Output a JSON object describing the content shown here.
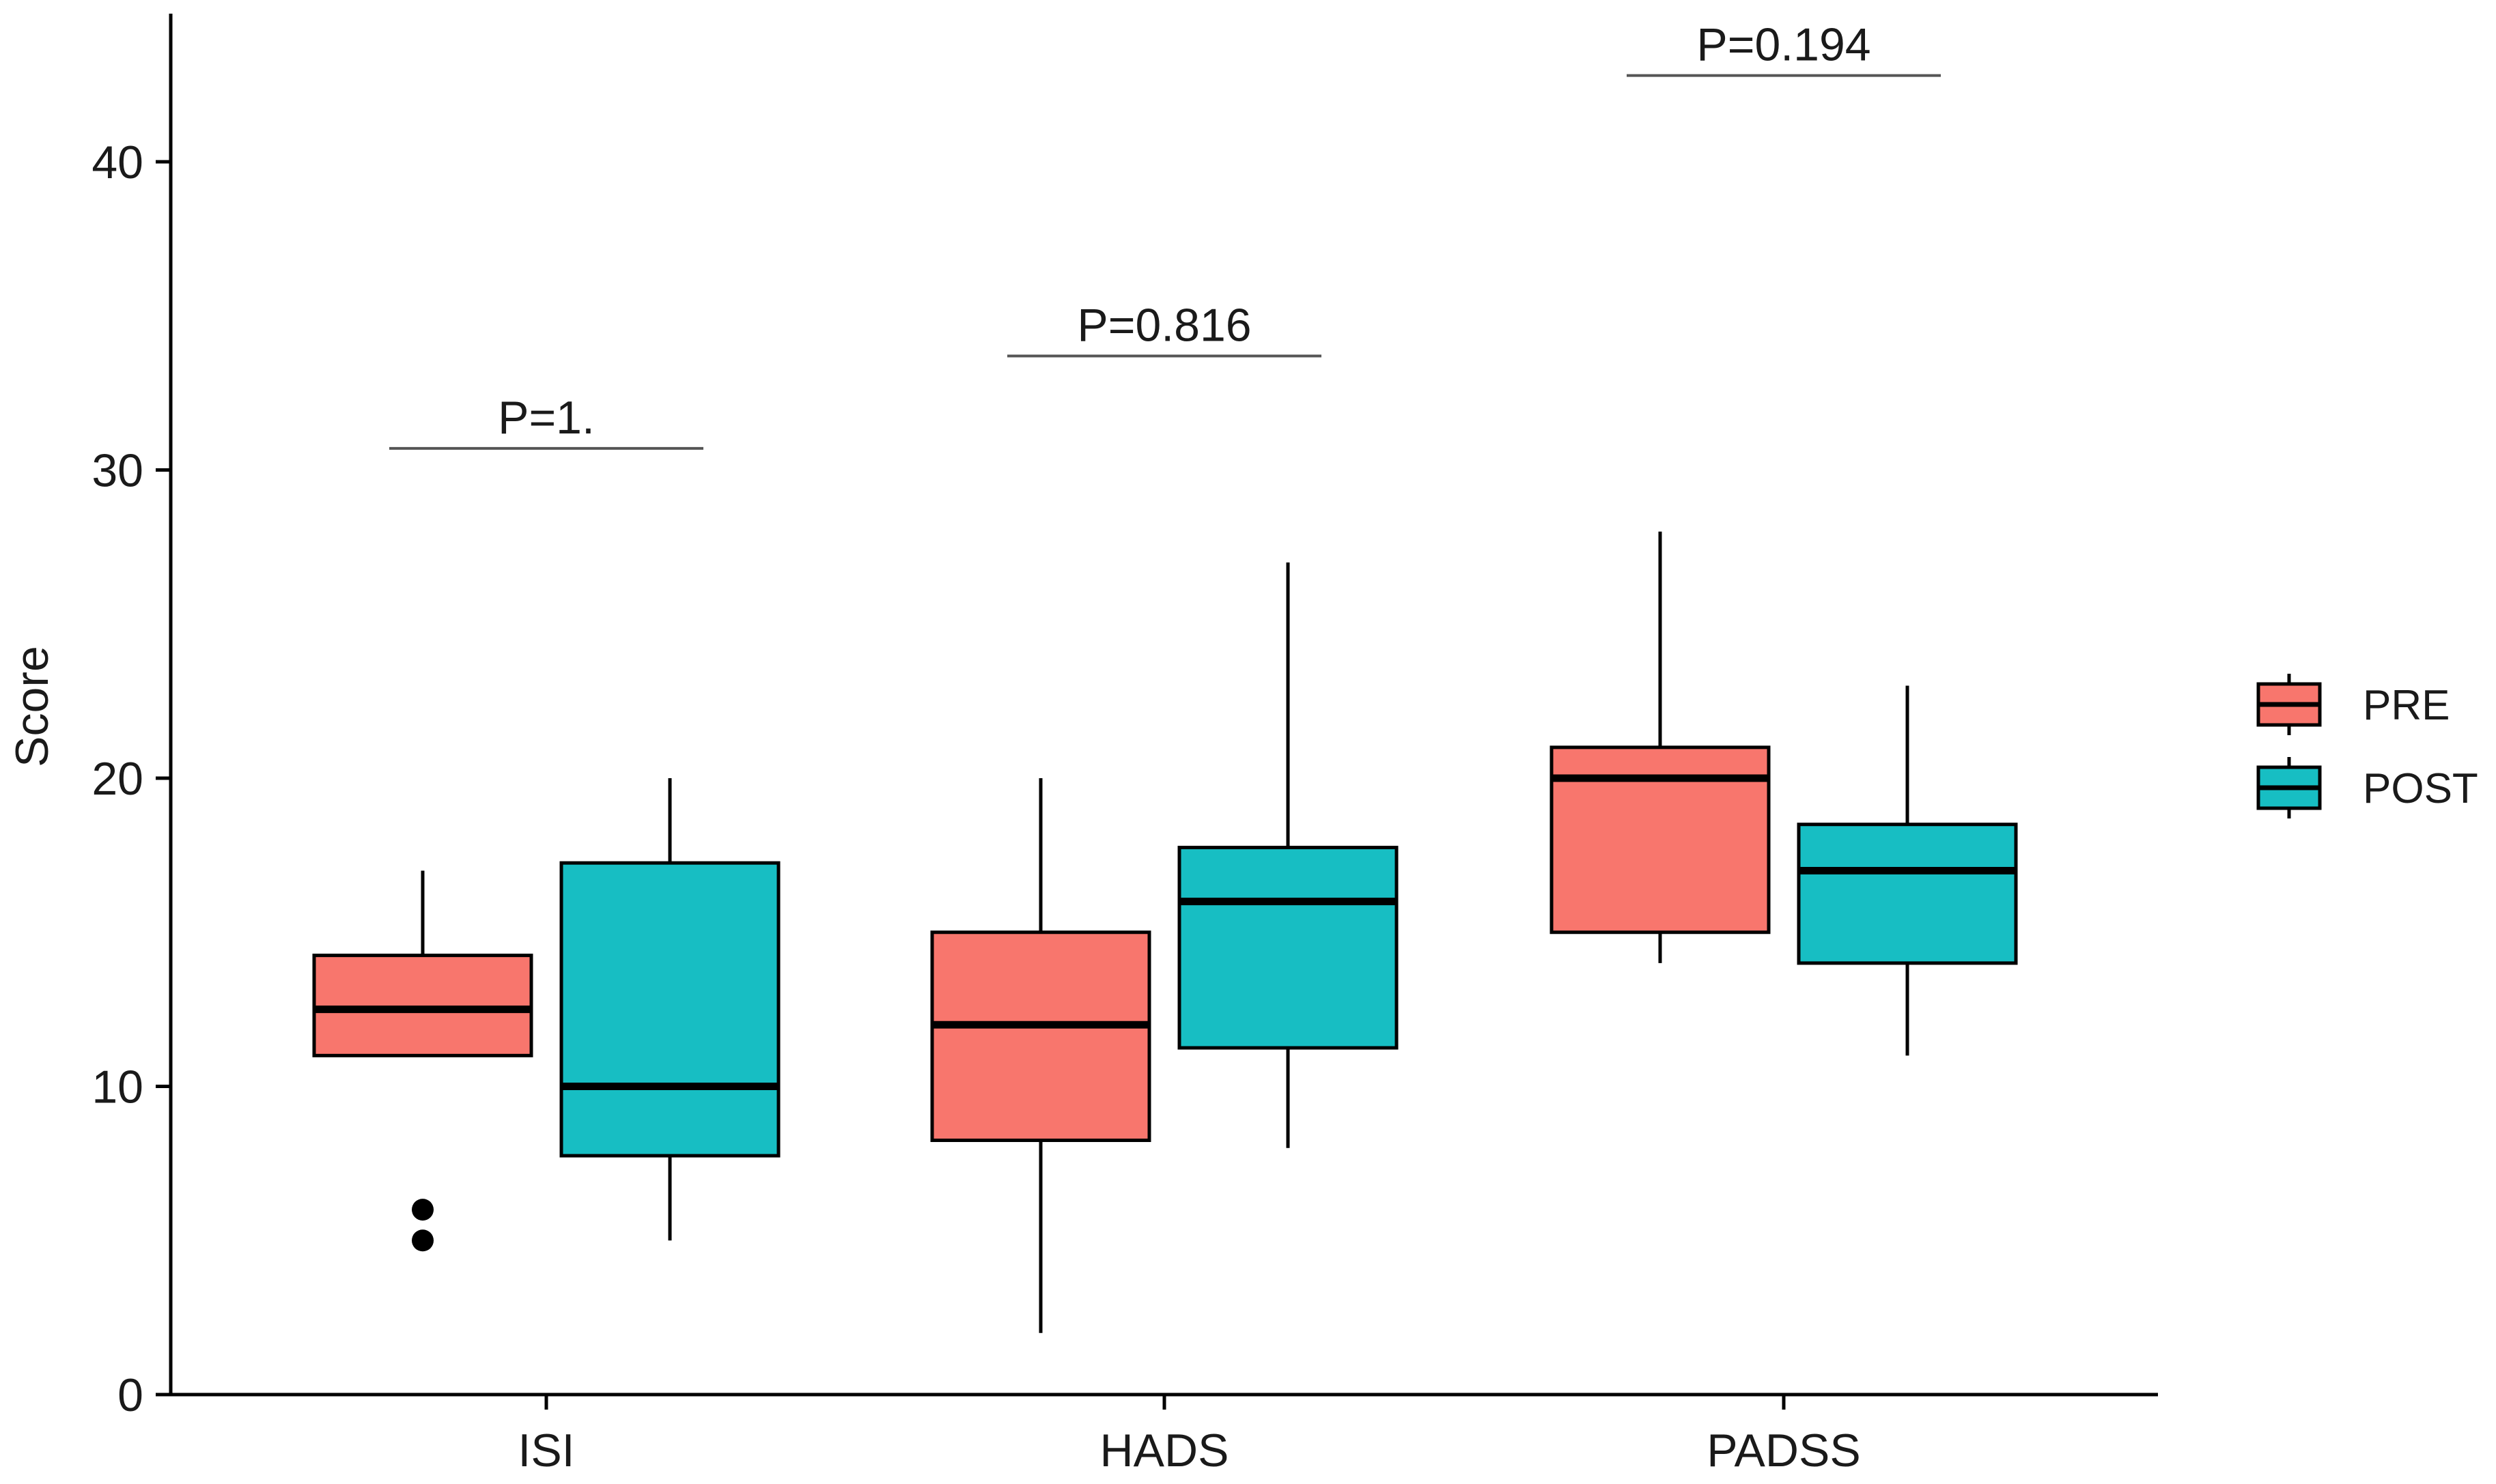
{
  "chart_data": {
    "type": "boxplot",
    "title": "",
    "xlabel": "",
    "ylabel": "Score",
    "ylim": [
      0,
      45
    ],
    "yticks": [
      0,
      10,
      20,
      30,
      40
    ],
    "grid": false,
    "legend_position": "right",
    "categories": [
      "ISI",
      "HADS",
      "PADSS"
    ],
    "series": [
      {
        "name": "PRE",
        "color": "#F8766D",
        "boxes": [
          {
            "category": "ISI",
            "whisker_low": 11,
            "q1": 11,
            "median": 12.5,
            "q3": 14.25,
            "whisker_high": 17,
            "outliers": [
              5,
              6
            ]
          },
          {
            "category": "HADS",
            "whisker_low": 2,
            "q1": 8.25,
            "median": 12,
            "q3": 15,
            "whisker_high": 20,
            "outliers": []
          },
          {
            "category": "PADSS",
            "whisker_low": 14,
            "q1": 15,
            "median": 20,
            "q3": 21,
            "whisker_high": 28,
            "outliers": []
          }
        ]
      },
      {
        "name": "POST",
        "color": "#17BEC3",
        "boxes": [
          {
            "category": "ISI",
            "whisker_low": 5,
            "q1": 7.75,
            "median": 10,
            "q3": 17.25,
            "whisker_high": 20,
            "outliers": []
          },
          {
            "category": "HADS",
            "whisker_low": 8,
            "q1": 11.25,
            "median": 16,
            "q3": 17.75,
            "whisker_high": 27,
            "outliers": []
          },
          {
            "category": "PADSS",
            "whisker_low": 11,
            "q1": 14,
            "median": 17,
            "q3": 18.5,
            "whisker_high": 23,
            "outliers": []
          }
        ]
      }
    ],
    "annotations": [
      {
        "category": "ISI",
        "text": "P=1.",
        "y": 30.7
      },
      {
        "category": "HADS",
        "text": "P=0.816",
        "y": 33.7
      },
      {
        "category": "PADSS",
        "text": "P=0.194",
        "y": 42.8
      }
    ]
  }
}
